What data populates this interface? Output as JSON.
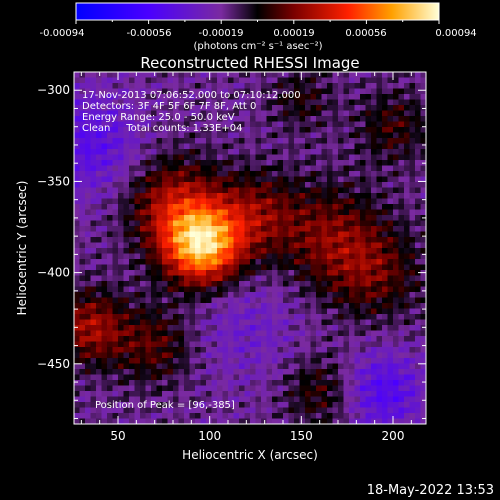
{
  "colorbar": {
    "tick_labels": [
      "-0.00094",
      "-0.00056",
      "-0.00019",
      "0.00019",
      "0.00056",
      "0.00094"
    ],
    "units": "(photons cm⁻² s⁻¹ asec⁻²)"
  },
  "chart_data": {
    "type": "heatmap",
    "title": "Reconstructed RHESSI Image",
    "xlabel": "Heliocentric X (arcsec)",
    "ylabel": "Heliocentric Y (arcsec)",
    "xlim": [
      26,
      218
    ],
    "ylim": [
      -483,
      -290
    ],
    "x_ticks": [
      50,
      100,
      150,
      200
    ],
    "y_ticks": [
      -300,
      -350,
      -400,
      -450
    ],
    "annotations": [
      "17-Nov-2013 07:06:52.000 to 07:10:12.000",
      "Detectors: 3F 4F 5F 6F 7F 8F, Att 0",
      "Energy Range: 25.0 - 50.0 keV",
      "Clean     Total counts: 1.33E+04"
    ],
    "peak_label": "Position of Peak = [96,-385]",
    "peak": [
      96,
      -385
    ],
    "color_range": [
      -0.00094,
      0.00094
    ],
    "sources": [
      {
        "x": 96,
        "y": -385,
        "amp": 1.0,
        "sigma": 15
      },
      {
        "x": 80,
        "y": -362,
        "amp": 0.45,
        "sigma": 18
      },
      {
        "x": 125,
        "y": -368,
        "amp": 0.35,
        "sigma": 16
      },
      {
        "x": 165,
        "y": -380,
        "amp": 0.35,
        "sigma": 20
      },
      {
        "x": 190,
        "y": -400,
        "amp": 0.3,
        "sigma": 18
      },
      {
        "x": 35,
        "y": -430,
        "amp": 0.45,
        "sigma": 14
      },
      {
        "x": 70,
        "y": -440,
        "amp": 0.3,
        "sigma": 15
      },
      {
        "x": 160,
        "y": -465,
        "amp": 0.25,
        "sigma": 14
      },
      {
        "x": 200,
        "y": -320,
        "amp": 0.25,
        "sigma": 14
      },
      {
        "x": 150,
        "y": -305,
        "amp": 0.2,
        "sigma": 12
      },
      {
        "x": 120,
        "y": -430,
        "amp": -0.15,
        "sigma": 22
      },
      {
        "x": 195,
        "y": -465,
        "amp": -0.35,
        "sigma": 15
      },
      {
        "x": 35,
        "y": -330,
        "amp": -0.3,
        "sigma": 20
      }
    ]
  },
  "footer": {
    "date": "18-May-2022 13:53"
  }
}
